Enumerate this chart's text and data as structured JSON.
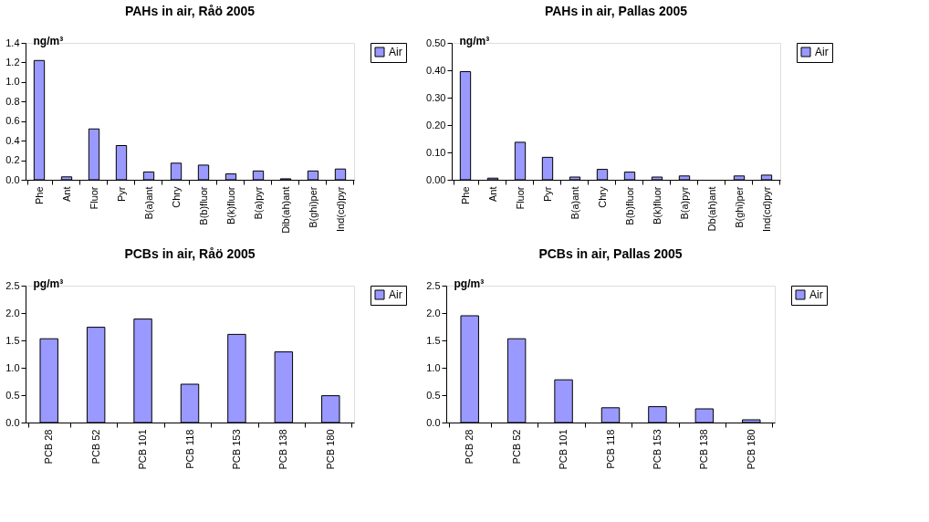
{
  "chart_data": [
    {
      "type": "bar",
      "title": "PAHs in air, Råö 2005",
      "ylabel": "ng/m³",
      "categories": [
        "Phe",
        "Ant",
        "Fluor",
        "Pyr",
        "B(a)ant",
        "Chry",
        "B(b)fluor",
        "B(k)fluor",
        "B(a)pyr",
        "Dib(ah)ant",
        "B(ghi)per",
        "Ind(cd)pyr"
      ],
      "series": [
        {
          "name": "Air",
          "color": "#9999ff",
          "values": [
            1.22,
            0.03,
            0.52,
            0.35,
            0.08,
            0.17,
            0.15,
            0.06,
            0.09,
            0.01,
            0.09,
            0.11
          ]
        }
      ],
      "ylim": [
        0,
        1.4
      ],
      "yticks": [
        {
          "value": 0,
          "label": "0.0"
        },
        {
          "value": 0.2,
          "label": "0.2"
        },
        {
          "value": 0.4,
          "label": "0.4"
        },
        {
          "value": 0.6,
          "label": "0.6"
        },
        {
          "value": 0.8,
          "label": "0.8"
        },
        {
          "value": 1,
          "label": "1.0"
        },
        {
          "value": 1.2,
          "label": "1.2"
        },
        {
          "value": 1.4,
          "label": "1.4"
        }
      ],
      "legend": "right",
      "grid": false
    },
    {
      "type": "bar",
      "title": "PAHs in air, Pallas 2005",
      "ylabel": "ng/m³",
      "categories": [
        "Phe",
        "Ant",
        "Fluor",
        "Pyr",
        "B(a)ant",
        "Chry",
        "B(b)fluor",
        "B(k)fluor",
        "B(a)pyr",
        "Db(ah)ant",
        "B(ghi)per",
        "Ind(cd)pyr"
      ],
      "series": [
        {
          "name": "Air",
          "color": "#9999ff",
          "values": [
            0.395,
            0.006,
            0.137,
            0.082,
            0.01,
            0.038,
            0.028,
            0.01,
            0.014,
            null,
            0.014,
            0.017
          ]
        }
      ],
      "ylim": [
        0,
        0.5
      ],
      "yticks": [
        {
          "value": 0,
          "label": "0.00"
        },
        {
          "value": 0.1,
          "label": "0.10"
        },
        {
          "value": 0.2,
          "label": "0.20"
        },
        {
          "value": 0.3,
          "label": "0.30"
        },
        {
          "value": 0.4,
          "label": "0.40"
        },
        {
          "value": 0.5,
          "label": "0.50"
        }
      ],
      "legend": "right",
      "grid": false
    },
    {
      "type": "bar",
      "title": "PCBs in air, Råö 2005",
      "ylabel": "pg/m³",
      "categories": [
        "PCB 28",
        "PCB 52",
        "PCB 101",
        "PCB 118",
        "PCB 153",
        "PCB 138",
        "PCB 180"
      ],
      "series": [
        {
          "name": "Air",
          "color": "#9999ff",
          "values": [
            1.53,
            1.74,
            1.89,
            0.7,
            1.61,
            1.29,
            0.49
          ]
        }
      ],
      "ylim": [
        0,
        2.5
      ],
      "yticks": [
        {
          "value": 0,
          "label": "0.0"
        },
        {
          "value": 0.5,
          "label": "0.5"
        },
        {
          "value": 1,
          "label": "1.0"
        },
        {
          "value": 1.5,
          "label": "1.5"
        },
        {
          "value": 2,
          "label": "2.0"
        },
        {
          "value": 2.5,
          "label": "2.5"
        }
      ],
      "legend": "right",
      "grid": false
    },
    {
      "type": "bar",
      "title": "PCBs in air, Pallas 2005",
      "ylabel": "pg/m³",
      "categories": [
        "PCB 28",
        "PCB 52",
        "PCB 101",
        "PCB 118",
        "PCB 153",
        "PCB 138",
        "PCB 180"
      ],
      "series": [
        {
          "name": "Air",
          "color": "#9999ff",
          "values": [
            1.95,
            1.53,
            0.78,
            0.27,
            0.29,
            0.25,
            0.05
          ]
        }
      ],
      "ylim": [
        0,
        2.5
      ],
      "yticks": [
        {
          "value": 0,
          "label": "0.0"
        },
        {
          "value": 0.5,
          "label": "0.5"
        },
        {
          "value": 1,
          "label": "1.0"
        },
        {
          "value": 1.5,
          "label": "1.5"
        },
        {
          "value": 2,
          "label": "2.0"
        },
        {
          "value": 2.5,
          "label": "2.5"
        }
      ],
      "legend": "right",
      "grid": false
    }
  ]
}
